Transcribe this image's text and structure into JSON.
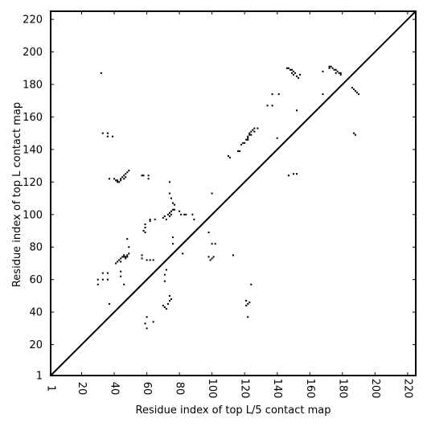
{
  "chart_data": {
    "type": "scatter",
    "title": "",
    "xlabel": "Residue index of top L/5 contact map",
    "ylabel": "Residue index of top L contact map",
    "xlim": [
      1,
      225
    ],
    "ylim": [
      1,
      225
    ],
    "xticks": [
      "1",
      "20",
      "40",
      "60",
      "80",
      "100",
      "120",
      "140",
      "160",
      "180",
      "200",
      "220"
    ],
    "yticks": [
      "1",
      "20",
      "40",
      "60",
      "80",
      "100",
      "120",
      "140",
      "160",
      "180",
      "200",
      "220"
    ],
    "grid": false,
    "diagonal": true,
    "color": "#000000",
    "upper_points": [
      [
        146,
        190
      ],
      [
        147,
        190
      ],
      [
        148,
        189
      ],
      [
        149,
        189
      ],
      [
        150,
        188
      ],
      [
        151,
        187
      ],
      [
        149,
        187
      ],
      [
        150,
        186
      ],
      [
        152,
        185
      ],
      [
        153,
        184
      ],
      [
        154,
        186
      ],
      [
        172,
        191
      ],
      [
        173,
        191
      ],
      [
        174,
        190
      ],
      [
        175,
        189
      ],
      [
        176,
        189
      ],
      [
        177,
        188
      ],
      [
        178,
        187
      ],
      [
        179,
        186
      ],
      [
        168,
        188
      ],
      [
        172,
        190
      ],
      [
        176,
        187
      ],
      [
        179,
        187
      ],
      [
        120,
        144
      ],
      [
        121,
        146
      ],
      [
        122,
        148
      ],
      [
        123,
        149
      ],
      [
        123,
        150
      ],
      [
        124,
        151
      ],
      [
        124,
        149
      ],
      [
        125,
        152
      ],
      [
        126,
        153
      ],
      [
        122,
        146
      ],
      [
        122,
        147
      ],
      [
        128,
        153
      ],
      [
        126,
        151
      ],
      [
        116,
        139
      ],
      [
        117,
        139
      ],
      [
        118,
        143
      ],
      [
        119,
        144
      ],
      [
        110,
        136
      ],
      [
        111,
        135
      ],
      [
        134,
        167
      ],
      [
        137,
        174
      ],
      [
        137,
        167
      ],
      [
        141,
        174
      ],
      [
        152,
        164
      ],
      [
        186,
        178
      ],
      [
        187,
        177
      ],
      [
        188,
        176
      ],
      [
        189,
        175
      ],
      [
        190,
        174
      ]
    ],
    "lower_points": [
      [
        40,
        122
      ],
      [
        41,
        121
      ],
      [
        42,
        121
      ],
      [
        43,
        120
      ],
      [
        44,
        121
      ],
      [
        44,
        122
      ],
      [
        45,
        123
      ],
      [
        46,
        124
      ],
      [
        47,
        125
      ],
      [
        48,
        126
      ],
      [
        49,
        127
      ],
      [
        46,
        122
      ],
      [
        47,
        123
      ],
      [
        42,
        120
      ],
      [
        37,
        122
      ],
      [
        33,
        150
      ],
      [
        36,
        150
      ],
      [
        36,
        148
      ],
      [
        39,
        148
      ],
      [
        32,
        187
      ],
      [
        58,
        124
      ],
      [
        61,
        124
      ],
      [
        61,
        122
      ],
      [
        57,
        124
      ],
      [
        70,
        98
      ],
      [
        71,
        99
      ],
      [
        72,
        97
      ],
      [
        73,
        100
      ],
      [
        74,
        101
      ],
      [
        75,
        102
      ],
      [
        76,
        103
      ],
      [
        77,
        103
      ],
      [
        74,
        99
      ],
      [
        75,
        100
      ],
      [
        59,
        94
      ],
      [
        59,
        92
      ],
      [
        58,
        90
      ],
      [
        59,
        89
      ],
      [
        62,
        97
      ],
      [
        62,
        96
      ],
      [
        65,
        97
      ],
      [
        74,
        113
      ],
      [
        74,
        120
      ],
      [
        75,
        110
      ],
      [
        76,
        107
      ],
      [
        77,
        106
      ],
      [
        80,
        102
      ],
      [
        81,
        100
      ],
      [
        83,
        100
      ],
      [
        84,
        100
      ],
      [
        88,
        100
      ],
      [
        89,
        97
      ],
      [
        100,
        113
      ],
      [
        41,
        70
      ],
      [
        42,
        71
      ],
      [
        43,
        72
      ],
      [
        44,
        71
      ],
      [
        44,
        73
      ],
      [
        45,
        74
      ],
      [
        46,
        75
      ],
      [
        47,
        74
      ],
      [
        48,
        75
      ],
      [
        49,
        76
      ],
      [
        46,
        74
      ],
      [
        47,
        73
      ],
      [
        48,
        74
      ],
      [
        33,
        64
      ],
      [
        33,
        60
      ],
      [
        36,
        60
      ],
      [
        36,
        64
      ],
      [
        30,
        60
      ],
      [
        30,
        57
      ],
      [
        37,
        45
      ],
      [
        44,
        65
      ],
      [
        44,
        62
      ],
      [
        46,
        57
      ],
      [
        48,
        85
      ],
      [
        49,
        80
      ],
      [
        57,
        75
      ],
      [
        57,
        73
      ],
      [
        60,
        72
      ],
      [
        62,
        72
      ],
      [
        64,
        72
      ],
      [
        60,
        37
      ],
      [
        60,
        30
      ],
      [
        64,
        34
      ],
      [
        59,
        33
      ],
      [
        70,
        44
      ],
      [
        71,
        43
      ],
      [
        72,
        42
      ],
      [
        73,
        45
      ],
      [
        74,
        47
      ],
      [
        74,
        50
      ],
      [
        75,
        48
      ],
      [
        71,
        63
      ],
      [
        71,
        59
      ],
      [
        72,
        66
      ],
      [
        76,
        82
      ],
      [
        76,
        86
      ],
      [
        82,
        76
      ],
      [
        98,
        89
      ],
      [
        98,
        74
      ],
      [
        99,
        72
      ],
      [
        100,
        73
      ],
      [
        101,
        74
      ],
      [
        100,
        82
      ],
      [
        102,
        82
      ],
      [
        121,
        47
      ],
      [
        121,
        44
      ],
      [
        122,
        45
      ],
      [
        123,
        46
      ],
      [
        122,
        37
      ],
      [
        124,
        57
      ],
      [
        113,
        75
      ],
      [
        140,
        147
      ],
      [
        147,
        124
      ],
      [
        150,
        125
      ],
      [
        152,
        125
      ],
      [
        168,
        174
      ],
      [
        187,
        150
      ],
      [
        188,
        149
      ]
    ]
  }
}
